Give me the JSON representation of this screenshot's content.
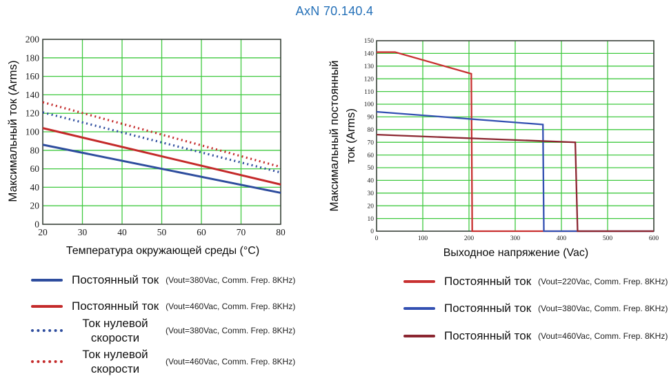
{
  "page_title": "AxN 70.140.4",
  "colors": {
    "title": "#2470B8",
    "grid": "#3FC93F",
    "axis": "#444444",
    "left_blue": "#2E4D9E",
    "left_red": "#C42A2A",
    "right_red": "#C83030",
    "right_blue": "#3350B2",
    "right_dark_red": "#8B2630"
  },
  "chart_data": [
    {
      "type": "line",
      "title": "",
      "xlabel": "Температура окружающей среды (°C)",
      "ylabel": "Максимальный ток (Arms)",
      "ylabel_lines": [
        "Максимальный ток (Arms)"
      ],
      "xlim": [
        20,
        80
      ],
      "ylim": [
        0,
        200
      ],
      "xticks": [
        20,
        30,
        40,
        50,
        60,
        70,
        80
      ],
      "yticks": [
        0,
        20,
        40,
        60,
        80,
        100,
        120,
        140,
        160,
        180,
        200
      ],
      "grid": true,
      "legend_position": "below",
      "series": [
        {
          "name": "Постоянный ток (Vout=380Vac, Comm. Frep. 8KHz)",
          "color": "#2E4D9E",
          "style": "solid",
          "points": [
            [
              20,
              86
            ],
            [
              80,
              34
            ]
          ]
        },
        {
          "name": "Постоянный ток (Vout=460Vac, Comm. Frep. 8KHz)",
          "color": "#C42A2A",
          "style": "solid",
          "points": [
            [
              20,
              104
            ],
            [
              80,
              43
            ]
          ]
        },
        {
          "name": "Ток нулевой скорости (Vout=380Vac, Comm. Frep. 8KHz)",
          "color": "#2E4D9E",
          "style": "dotted",
          "points": [
            [
              20,
              121
            ],
            [
              80,
              56
            ]
          ]
        },
        {
          "name": "Ток нулевой скорости (Vout=460Vac, Comm. Frep. 8KHz)",
          "color": "#C42A2A",
          "style": "dotted",
          "points": [
            [
              20,
              132
            ],
            [
              80,
              62
            ]
          ]
        }
      ],
      "legend": [
        {
          "label": "Постоянный ток",
          "detail": "(Vout=380Vac, Comm. Frep. 8KHz)",
          "color": "#2E4D9E",
          "style": "solid"
        },
        {
          "label": "Постоянный ток",
          "detail": "(Vout=460Vac, Comm. Frep. 8KHz)",
          "color": "#C42A2A",
          "style": "solid"
        },
        {
          "label": "Ток нулевой скорости",
          "detail": "(Vout=380Vac, Comm. Frep. 8KHz)",
          "color": "#2E4D9E",
          "style": "dotted"
        },
        {
          "label": "Ток нулевой скорости",
          "detail": "(Vout=460Vac, Comm. Frep. 8KHz)",
          "color": "#C42A2A",
          "style": "dotted"
        }
      ]
    },
    {
      "type": "line",
      "title": "",
      "xlabel": "Выходное напряжение (Vac)",
      "ylabel": "Максимальный постоянный ток (Arms)",
      "ylabel_lines": [
        "Максимальный постоянный",
        "ток (Arms)"
      ],
      "xlim": [
        0,
        600
      ],
      "ylim": [
        0,
        150
      ],
      "xticks": [
        0,
        100,
        200,
        300,
        400,
        500,
        600
      ],
      "yticks": [
        0,
        10,
        20,
        30,
        40,
        50,
        60,
        70,
        80,
        90,
        100,
        110,
        120,
        130,
        140,
        150
      ],
      "grid": true,
      "legend_position": "below",
      "series": [
        {
          "name": "Постоянный ток (Vout=220Vac, Comm. Frep. 8KHz)",
          "color": "#C83030",
          "style": "solid",
          "points": [
            [
              0,
              141
            ],
            [
              40,
              141
            ],
            [
              205,
              124
            ],
            [
              207,
              0
            ],
            [
              600,
              0
            ]
          ]
        },
        {
          "name": "Постоянный ток (Vout=380Vac, Comm. Frep. 8KHz)",
          "color": "#3350B2",
          "style": "solid",
          "points": [
            [
              0,
              94
            ],
            [
              360,
              84
            ],
            [
              362,
              0
            ],
            [
              600,
              0
            ]
          ]
        },
        {
          "name": "Постоянный ток (Vout=460Vac, Comm. Frep. 8KHz)",
          "color": "#8B2630",
          "style": "solid",
          "points": [
            [
              0,
              76
            ],
            [
              430,
              70
            ],
            [
              435,
              0
            ],
            [
              600,
              0
            ]
          ]
        }
      ],
      "legend": [
        {
          "label": "Постоянный ток",
          "detail": "(Vout=220Vac, Comm. Frep. 8KHz)",
          "color": "#C83030",
          "style": "solid"
        },
        {
          "label": "Постоянный ток",
          "detail": "(Vout=380Vac, Comm. Frep. 8KHz)",
          "color": "#3350B2",
          "style": "solid"
        },
        {
          "label": "Постоянный ток",
          "detail": "(Vout=460Vac, Comm. Frep. 8KHz)",
          "color": "#8B2630",
          "style": "solid"
        }
      ]
    }
  ]
}
